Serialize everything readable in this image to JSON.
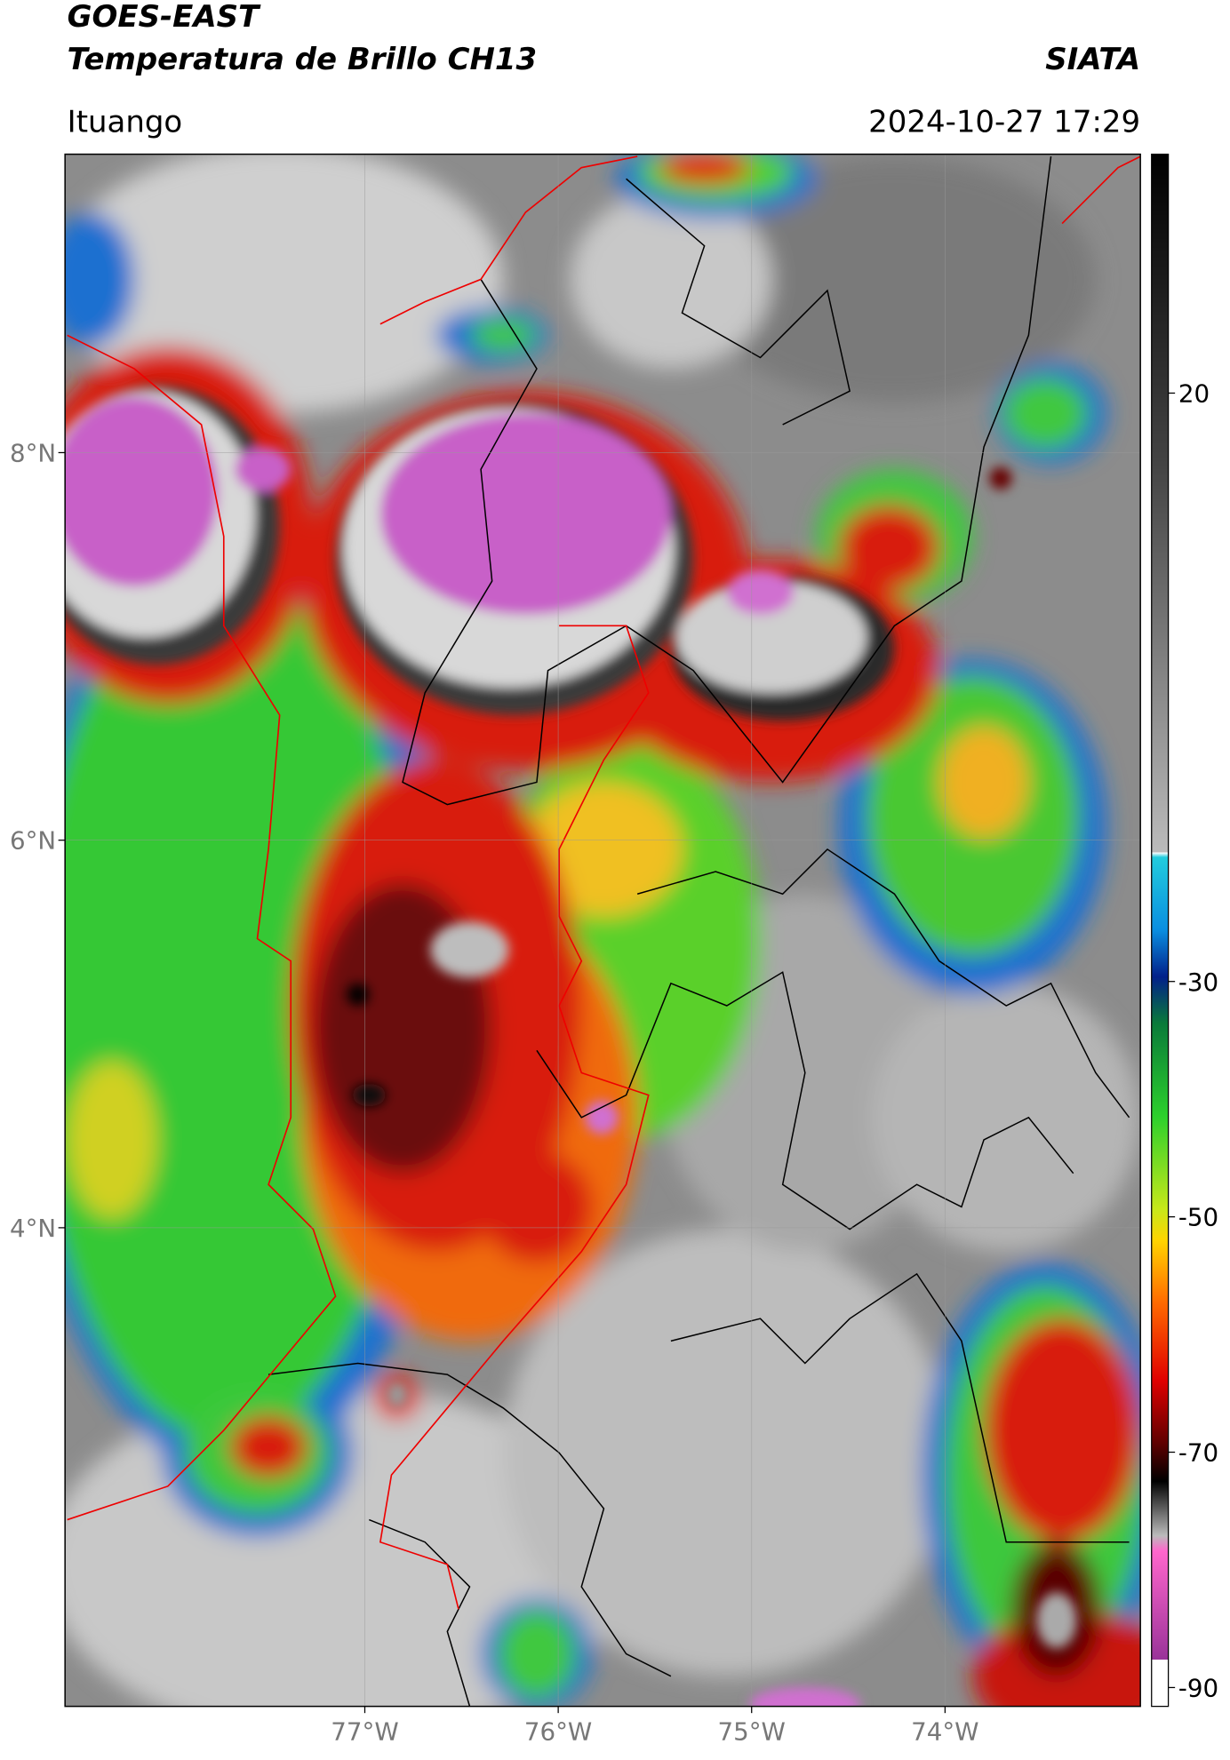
{
  "header": {
    "title": "GOES-EAST",
    "subtitle": "Temperatura de Brillo CH13",
    "source": "SIATA",
    "location": "Ituango",
    "timestamp": "2024-10-27 17:29"
  },
  "map": {
    "latlim": [
      1.53,
      9.54
    ],
    "lonlim": [
      -78.55,
      -72.99
    ],
    "lat_ticks": [
      {
        "value": 8,
        "label": "8°N"
      },
      {
        "value": 6,
        "label": "6°N"
      },
      {
        "value": 4,
        "label": "4°N"
      }
    ],
    "lon_ticks": [
      {
        "value": -77,
        "label": "77°W"
      },
      {
        "value": -76,
        "label": "76°W"
      },
      {
        "value": -75,
        "label": "75°W"
      },
      {
        "value": -74,
        "label": "74°W"
      }
    ]
  },
  "colorbar": {
    "lim": [
      -91.6,
      40.3
    ],
    "ticks": [
      20,
      -30,
      -50,
      -70,
      -90
    ]
  }
}
